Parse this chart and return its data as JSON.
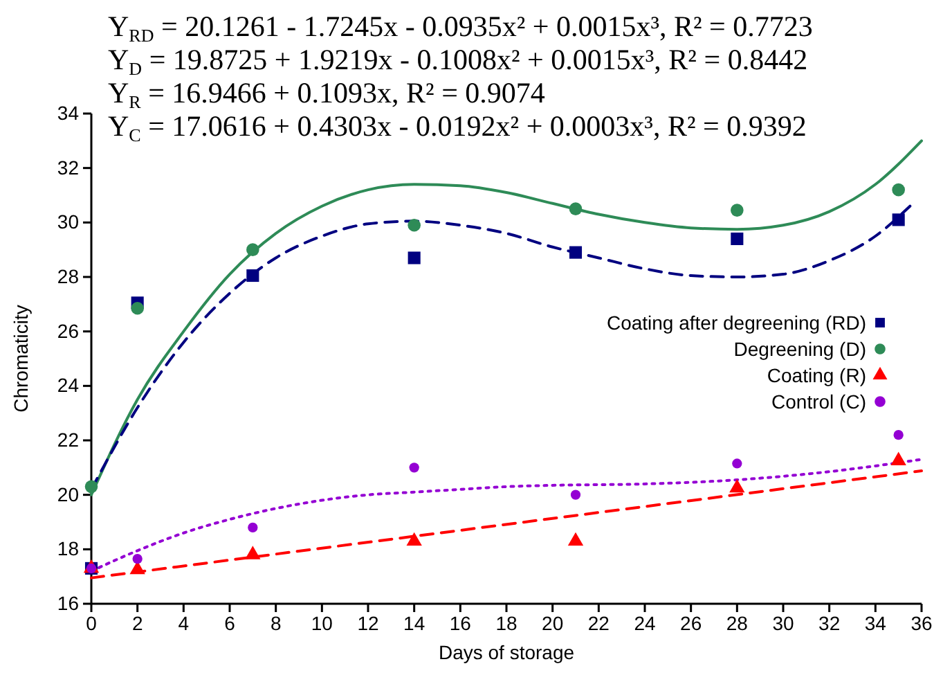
{
  "chart_data": {
    "type": "scatter",
    "xlabel": "Days of storage",
    "ylabel": "Chromaticity",
    "xlim": [
      0,
      36
    ],
    "xticks": [
      0,
      2,
      4,
      6,
      8,
      10,
      12,
      14,
      16,
      18,
      20,
      22,
      24,
      26,
      28,
      30,
      32,
      34,
      36
    ],
    "ylim": [
      16,
      34
    ],
    "yticks": [
      16,
      18,
      20,
      22,
      24,
      26,
      28,
      30,
      32,
      34
    ],
    "grid": false,
    "legend": "right",
    "annotations": [
      "Y$_{RD}$ = 20.1261 - 1.7245x - 0.0935x² + 0.0015x³, R² = 0.7723",
      "Y$_{D}$ = 19.8725 + 1.9219x - 0.1008x² + 0.0015x³, R² = 0.8442",
      "Y$_{R}$ = 16.9466 + 0.1093x, R² = 0.9074",
      "Y$_{C}$ = 17.0616 + 0.4303x - 0.0192x² + 0.0003x³, R² = 0.9392"
    ],
    "series": [
      {
        "type": "line",
        "color": "#2e8b57",
        "line_style": "solid",
        "marker": "none",
        "x": [
          0,
          2,
          4,
          6,
          8,
          10,
          12,
          14,
          16,
          18,
          20,
          22,
          24,
          26,
          28,
          30,
          32,
          34,
          36
        ],
        "values": [
          20.0,
          23.5,
          26.0,
          28.1,
          29.6,
          30.6,
          31.2,
          31.4,
          31.35,
          31.1,
          30.7,
          30.3,
          30.0,
          29.8,
          29.75,
          29.9,
          30.4,
          31.4,
          33.0
        ]
      },
      {
        "type": "line",
        "color": "#000080",
        "line_style": "dashed",
        "marker": "none",
        "x": [
          0,
          2,
          4,
          6,
          8,
          10,
          12,
          14,
          16,
          18,
          20,
          22,
          24,
          26,
          28,
          30,
          32,
          34,
          35.5
        ],
        "values": [
          20.2,
          23.2,
          25.6,
          27.4,
          28.7,
          29.5,
          29.95,
          30.05,
          29.9,
          29.6,
          29.1,
          28.7,
          28.3,
          28.05,
          28.0,
          28.1,
          28.6,
          29.5,
          30.6
        ]
      },
      {
        "type": "line",
        "color": "#9400d3",
        "line_style": "dotted",
        "marker": "none",
        "x": [
          0,
          2,
          4,
          6,
          8,
          10,
          12,
          14,
          16,
          18,
          20,
          24,
          28,
          32,
          36
        ],
        "values": [
          17.2,
          17.95,
          18.6,
          19.1,
          19.5,
          19.8,
          20.0,
          20.1,
          20.2,
          20.3,
          20.35,
          20.4,
          20.55,
          20.85,
          21.3
        ]
      },
      {
        "type": "line",
        "color": "#ff0000",
        "line_style": "dashed",
        "marker": "none",
        "x": [
          0,
          36
        ],
        "values": [
          16.95,
          20.88
        ]
      },
      {
        "name": "Coating after degreening (RD)",
        "color": "#000080",
        "marker": "square",
        "x": [
          0,
          2,
          7,
          14,
          21,
          28,
          35
        ],
        "values": [
          17.3,
          27.05,
          28.05,
          28.7,
          28.9,
          29.4,
          30.1
        ]
      },
      {
        "name": "Degreening (D)",
        "color": "#2e8b57",
        "marker": "circle",
        "x": [
          0,
          2,
          7,
          14,
          21,
          28,
          35
        ],
        "values": [
          20.3,
          26.85,
          29.0,
          29.9,
          30.5,
          30.45,
          31.2
        ]
      },
      {
        "name": "Coating (R)",
        "color": "#ff0000",
        "marker": "triangle",
        "x": [
          0,
          2,
          7,
          14,
          21,
          28,
          35
        ],
        "values": [
          17.3,
          17.25,
          17.8,
          18.3,
          18.3,
          20.25,
          21.25
        ]
      },
      {
        "name": "Control (C)",
        "color": "#9400d3",
        "marker": "circle",
        "x": [
          0,
          2,
          7,
          14,
          21,
          28,
          35
        ],
        "values": [
          17.3,
          17.65,
          18.8,
          21.0,
          20.0,
          21.15,
          22.2
        ]
      }
    ]
  }
}
